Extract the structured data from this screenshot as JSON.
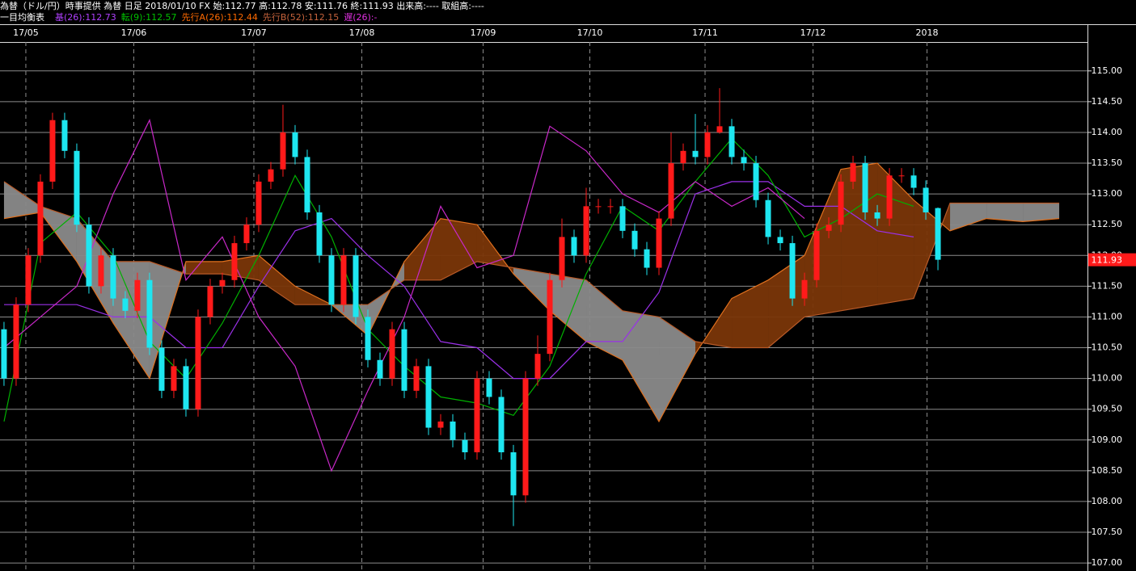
{
  "chart_data": {
    "type": "candlestick",
    "title": "為替（ドル/円）時事提供 為替 日足 2018/01/10 FX 始:112.77 高:112.78 安:111.76 終:111.93 出来高:---- 取組高:----",
    "indicator_title": "一目均衡表",
    "indicators": [
      {
        "label": "基(26):112.73",
        "color": "#b040ff"
      },
      {
        "label": "転(9):112.57",
        "color": "#00c000"
      },
      {
        "label": "先行A(26):112.44",
        "color": "#ff6a00"
      },
      {
        "label": "先行B(52):112.15",
        "color": "#c8643c"
      },
      {
        "label": "遅(26):-",
        "color": "#e030e0"
      }
    ],
    "xlim": [
      -0.33,
      89.33
    ],
    "xticks": [
      {
        "value": 1.8,
        "label": "17/05"
      },
      {
        "value": 10.7,
        "label": "17/06"
      },
      {
        "value": 20.6,
        "label": "17/07"
      },
      {
        "value": 29.5,
        "label": "17/08"
      },
      {
        "value": 39.5,
        "label": "17/09"
      },
      {
        "value": 48.3,
        "label": "17/10"
      },
      {
        "value": 57.8,
        "label": "17/11"
      },
      {
        "value": 66.7,
        "label": "17/12"
      },
      {
        "value": 76.1,
        "label": "2018"
      }
    ],
    "ylim": [
      106.87,
      115.47
    ],
    "yticks": [
      {
        "value": 107,
        "label": "107.00"
      },
      {
        "value": 107.5,
        "label": "107.50"
      },
      {
        "value": 108,
        "label": "108.00"
      },
      {
        "value": 108.5,
        "label": "108.50"
      },
      {
        "value": 109,
        "label": "109.00"
      },
      {
        "value": 109.5,
        "label": "109.50"
      },
      {
        "value": 110,
        "label": "110.00"
      },
      {
        "value": 110.5,
        "label": "110.50"
      },
      {
        "value": 111,
        "label": "111.00"
      },
      {
        "value": 111.5,
        "label": "111.50"
      },
      {
        "value": 112,
        "label": "112.00"
      },
      {
        "value": 112.5,
        "label": "112.50"
      },
      {
        "value": 113,
        "label": "113.00"
      },
      {
        "value": 113.5,
        "label": "113.50"
      },
      {
        "value": 114,
        "label": "114.00"
      },
      {
        "value": 114.5,
        "label": "114.50"
      },
      {
        "value": 115,
        "label": "115.00"
      }
    ],
    "grid": true,
    "up_color": "#ff1a1a",
    "down_color": "#1ee6f0",
    "cloud_up_color": "#7a3608",
    "cloud_down_color": "#8a8a8a",
    "last_price_color": "#ff1a1a",
    "x": [
      0,
      1,
      2,
      3,
      4,
      5,
      6,
      7,
      8,
      9,
      10,
      11,
      12,
      13,
      14,
      15,
      16,
      17,
      18,
      19,
      20,
      21,
      22,
      23,
      24,
      25,
      26,
      27,
      28,
      29,
      30,
      31,
      32,
      33,
      34,
      35,
      36,
      37,
      38,
      39,
      40,
      41,
      42,
      43,
      44,
      45,
      46,
      47,
      48,
      49,
      50,
      51,
      52,
      53,
      54,
      55,
      56,
      57,
      58,
      59,
      60,
      61,
      62,
      63,
      64,
      65,
      66,
      67,
      68,
      69,
      70,
      71,
      72,
      73,
      74,
      75,
      76,
      77
    ],
    "open": [
      110.8,
      110.0,
      111.2,
      112.0,
      113.2,
      114.2,
      113.7,
      112.5,
      111.5,
      112.0,
      111.3,
      111.1,
      111.6,
      110.5,
      109.8,
      110.2,
      109.5,
      111.0,
      111.5,
      111.6,
      112.2,
      112.5,
      113.2,
      113.4,
      114.0,
      113.6,
      112.7,
      112.0,
      111.2,
      112.0,
      111.0,
      110.3,
      110.0,
      110.8,
      109.8,
      110.2,
      109.2,
      109.3,
      109.0,
      108.8,
      110.0,
      109.7,
      108.8,
      108.1,
      110.0,
      110.4,
      111.6,
      112.3,
      112.0,
      112.8,
      112.8,
      112.8,
      112.4,
      112.1,
      111.8,
      112.6,
      113.5,
      113.7,
      113.6,
      114.0,
      114.1,
      113.6,
      113.5,
      112.9,
      112.3,
      112.2,
      111.3,
      111.6,
      112.4,
      112.5,
      113.2,
      113.5,
      112.7,
      112.6,
      113.3,
      113.3,
      113.1,
      112.77
    ],
    "high": [
      110.92,
      111.32,
      112.12,
      113.32,
      114.32,
      114.32,
      113.82,
      112.62,
      112.12,
      112.12,
      111.42,
      111.72,
      111.72,
      110.62,
      110.32,
      110.32,
      111.12,
      111.62,
      111.72,
      112.32,
      112.62,
      113.32,
      113.52,
      114.45,
      114.12,
      113.72,
      112.82,
      112.12,
      112.12,
      112.12,
      111.12,
      110.42,
      110.92,
      110.92,
      110.32,
      110.32,
      109.42,
      109.42,
      109.12,
      110.12,
      110.12,
      109.82,
      108.92,
      110.12,
      110.7,
      111.72,
      112.6,
      112.42,
      113.1,
      112.92,
      112.92,
      112.92,
      112.52,
      112.22,
      112.72,
      114.0,
      113.82,
      114.3,
      114.12,
      114.72,
      114.22,
      113.72,
      113.62,
      113.02,
      112.42,
      112.32,
      111.72,
      112.52,
      112.62,
      113.32,
      113.62,
      113.62,
      112.82,
      113.42,
      113.42,
      113.42,
      113.22,
      112.78
    ],
    "low": [
      109.88,
      109.88,
      111.08,
      111.88,
      113.08,
      113.58,
      112.38,
      111.38,
      111.38,
      111.18,
      110.98,
      110.98,
      110.38,
      109.68,
      109.68,
      109.38,
      109.38,
      110.88,
      111.38,
      111.48,
      112.08,
      112.38,
      113.08,
      113.28,
      113.48,
      112.58,
      111.88,
      111.08,
      111.08,
      110.88,
      110.18,
      109.88,
      109.88,
      109.68,
      109.68,
      109.08,
      109.08,
      108.88,
      108.68,
      108.68,
      109.58,
      108.68,
      107.6,
      107.98,
      109.88,
      110.28,
      111.48,
      111.88,
      111.88,
      112.68,
      112.68,
      112.28,
      111.98,
      111.68,
      111.68,
      112.48,
      113.38,
      113.48,
      113.48,
      113.98,
      113.48,
      113.38,
      112.78,
      112.18,
      112.08,
      111.18,
      111.18,
      111.48,
      112.28,
      112.38,
      113.08,
      112.58,
      112.48,
      112.48,
      113.18,
      112.98,
      112.58,
      111.76
    ],
    "close": [
      110.0,
      111.2,
      112.0,
      113.2,
      114.2,
      113.7,
      112.5,
      111.5,
      112.0,
      111.3,
      111.1,
      111.6,
      110.5,
      109.8,
      110.2,
      109.5,
      111.0,
      111.5,
      111.6,
      112.2,
      112.5,
      113.2,
      113.4,
      114.0,
      113.6,
      112.7,
      112.0,
      111.2,
      112.0,
      111.0,
      110.3,
      110.0,
      110.8,
      109.8,
      110.2,
      109.2,
      109.3,
      109.0,
      108.8,
      110.0,
      109.7,
      108.8,
      108.1,
      110.0,
      110.4,
      111.6,
      112.3,
      112.0,
      112.8,
      112.8,
      112.8,
      112.4,
      112.1,
      111.8,
      112.6,
      113.5,
      113.7,
      113.6,
      114.0,
      114.1,
      113.6,
      113.5,
      112.9,
      112.3,
      112.2,
      111.3,
      111.6,
      112.4,
      112.5,
      113.2,
      113.5,
      112.7,
      112.6,
      113.3,
      113.3,
      113.1,
      112.7,
      111.93
    ],
    "senkou_a": {
      "color": "#e0701e",
      "x": [
        0,
        3,
        6,
        9,
        12,
        15,
        18,
        21,
        24,
        27,
        30,
        33,
        36,
        39,
        42,
        45,
        48,
        51,
        54,
        57,
        60,
        63,
        66,
        69,
        72,
        75,
        78,
        81,
        84,
        87
      ],
      "values": [
        112.6,
        112.7,
        111.9,
        110.9,
        110.0,
        111.9,
        111.9,
        112.0,
        111.5,
        111.2,
        110.7,
        111.9,
        112.6,
        112.5,
        111.7,
        111.1,
        110.6,
        110.3,
        109.3,
        110.4,
        111.3,
        111.6,
        112.0,
        113.4,
        113.5,
        112.9,
        112.4,
        112.6,
        112.55,
        112.6
      ]
    },
    "senkou_b": {
      "color": "#b85a28",
      "x": [
        0,
        3,
        6,
        9,
        12,
        15,
        18,
        21,
        24,
        27,
        30,
        33,
        36,
        39,
        42,
        45,
        48,
        51,
        54,
        57,
        60,
        63,
        66,
        69,
        72,
        75,
        78,
        81,
        84,
        87
      ],
      "values": [
        113.2,
        112.8,
        112.6,
        111.9,
        111.9,
        111.7,
        111.7,
        111.6,
        111.2,
        111.2,
        111.2,
        111.6,
        111.6,
        111.9,
        111.8,
        111.7,
        111.6,
        111.1,
        111.0,
        110.6,
        110.5,
        110.5,
        111.0,
        111.1,
        111.2,
        111.3,
        112.85,
        112.85,
        112.85,
        112.85
      ]
    },
    "tenkan": {
      "color": "#00b000",
      "x": [
        0,
        3,
        6,
        9,
        12,
        15,
        18,
        21,
        24,
        27,
        30,
        33,
        36,
        39,
        42,
        45,
        48,
        51,
        54,
        57,
        60,
        63,
        66,
        69,
        72,
        75
      ],
      "values": [
        109.3,
        112.2,
        112.7,
        112.0,
        110.6,
        110.0,
        110.9,
        112.0,
        113.3,
        112.3,
        110.8,
        110.2,
        109.7,
        109.6,
        109.4,
        110.2,
        111.7,
        112.8,
        112.4,
        113.2,
        113.9,
        113.3,
        112.3,
        112.6,
        113.0,
        112.8
      ]
    },
    "kijun": {
      "color": "#9a30e8",
      "x": [
        0,
        3,
        6,
        9,
        12,
        15,
        18,
        21,
        24,
        27,
        30,
        33,
        36,
        39,
        42,
        45,
        48,
        51,
        54,
        57,
        60,
        63,
        66,
        69,
        72,
        75
      ],
      "values": [
        111.2,
        111.2,
        111.2,
        111.0,
        111.0,
        110.5,
        110.5,
        111.5,
        112.4,
        112.6,
        112.0,
        111.5,
        110.6,
        110.5,
        110.0,
        110.0,
        110.6,
        110.6,
        111.4,
        113.0,
        113.2,
        113.2,
        112.8,
        112.8,
        112.4,
        112.3
      ]
    },
    "chikou": {
      "color": "#c828c8",
      "x": [
        0,
        3,
        6,
        9,
        12,
        15,
        18,
        21,
        24,
        27,
        30,
        33,
        36,
        39,
        42,
        45,
        48,
        51,
        54,
        57,
        60,
        63,
        66
      ],
      "values": [
        110.5,
        111.0,
        111.5,
        113.0,
        114.2,
        111.6,
        112.3,
        111.0,
        110.2,
        108.5,
        109.8,
        111.0,
        112.8,
        111.8,
        112.0,
        114.1,
        113.7,
        113.0,
        112.7,
        113.2,
        112.8,
        113.1,
        112.6
      ]
    }
  }
}
